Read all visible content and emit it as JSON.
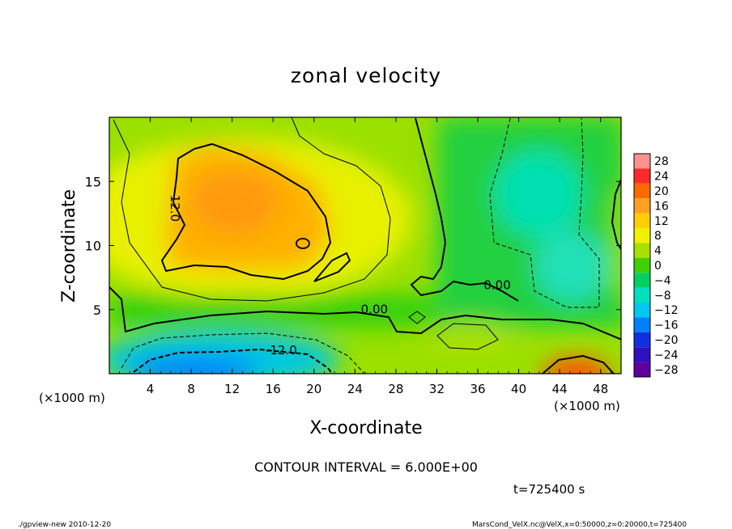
{
  "chart_data": {
    "type": "heatmap",
    "title": "zonal velocity",
    "xlabel": "X-coordinate",
    "ylabel": "Z-coordinate",
    "x_unit_left": "(×1000 m)",
    "x_unit_right": "(×1000 m)",
    "xlim": [
      0,
      50
    ],
    "ylim": [
      0,
      20
    ],
    "x_ticks": [
      "4",
      "8",
      "12",
      "16",
      "20",
      "24",
      "28",
      "32",
      "36",
      "40",
      "44",
      "48"
    ],
    "x_tick_values": [
      4,
      8,
      12,
      16,
      20,
      24,
      28,
      32,
      36,
      40,
      44,
      48
    ],
    "y_ticks": [
      "5",
      "10",
      "15"
    ],
    "y_tick_values": [
      5,
      10,
      15
    ],
    "contour_interval_text": "CONTOUR INTERVAL = 6.000E+00",
    "time_text": "t=725400 s",
    "contour_labels": [
      {
        "text": "12.0",
        "x": 6.0,
        "z": 12.9
      },
      {
        "text": "0.00",
        "x": 25.9,
        "z": 4.7
      },
      {
        "text": "0.00",
        "x": 37.9,
        "z": 6.6
      },
      {
        "text": "-12.0",
        "x": 16.8,
        "z": 1.5
      }
    ],
    "colorbar": {
      "labels": [
        "28",
        "24",
        "20",
        "16",
        "12",
        "8",
        "4",
        "0",
        "−4",
        "−8",
        "−12",
        "−16",
        "−20",
        "−24",
        "−28"
      ],
      "values": [
        28,
        24,
        20,
        16,
        12,
        8,
        4,
        0,
        -4,
        -8,
        -12,
        -16,
        -20,
        -24,
        -28
      ],
      "colors": [
        "#ff9090",
        "#ff2a2a",
        "#ff6a00",
        "#ffa020",
        "#ffd000",
        "#f0f000",
        "#a8e000",
        "#40d000",
        "#00d060",
        "#00e0c0",
        "#00c8f0",
        "#0080ff",
        "#1030e0",
        "#3010c0",
        "#6000a0"
      ]
    },
    "features": [
      {
        "name": "upper positive core",
        "x": 12,
        "z": 13,
        "value": 16
      },
      {
        "name": "lower negative core",
        "x": 11,
        "z": 1,
        "value": -16
      },
      {
        "name": "right negative region",
        "x": 44,
        "z": 11,
        "value": -8
      },
      {
        "name": "bottom-right positive core",
        "x": 46,
        "z": 0.5,
        "value": 16
      }
    ]
  },
  "footer": {
    "left": "./gpview-new  2010-12-20",
    "right": "MarsCond_VelX.nc@VelX,x=0:50000,z=0:20000,t=725400"
  }
}
